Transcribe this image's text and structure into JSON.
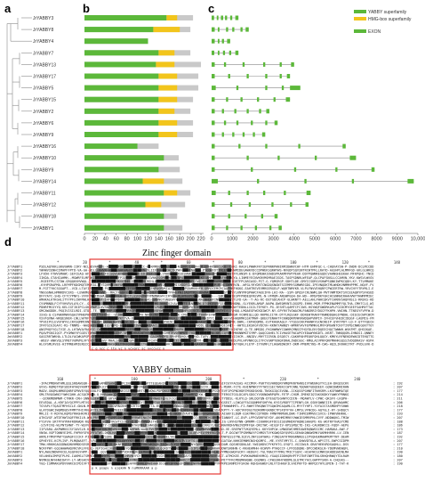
{
  "panels": {
    "a": "a",
    "b": "b",
    "c": "c",
    "d": "d"
  },
  "genes": [
    "JrYABBY3",
    "JrYABBY8",
    "JrYABBY4",
    "JrYABBY7",
    "JrYABBY13",
    "JrYABBY17",
    "JrYABBY5",
    "JrYABBY15",
    "JrYABBY2",
    "JrYABBY6",
    "JrYABBY9",
    "JrYABBY16",
    "JrYABBY10",
    "JrYABBY9",
    "JrYABBY14",
    "JrYABBY11",
    "JrYABBY12",
    "JrYABBY18",
    "JrYABBY1"
  ],
  "legend_b_c": {
    "yabby": "YABBY superfamily",
    "hmg": "HMG-box superfamily",
    "exon": "EXON"
  },
  "colors": {
    "yabby": "#5cb83a",
    "hmg": "#f2c51c",
    "protein_bg": "#c9c9c9",
    "exon": "#5cb83a",
    "intron": "#888888",
    "box": "#e53935"
  },
  "axis_b": {
    "ticks": [
      "0",
      "20",
      "40",
      "60",
      "80",
      "100",
      "120",
      "140",
      "160",
      "180",
      "200",
      "220"
    ],
    "max": 225
  },
  "axis_c": {
    "ticks": [
      "0",
      "1000",
      "2000",
      "3000",
      "4000",
      "5000",
      "6000",
      "7000",
      "8000",
      "9000",
      "10,000"
    ],
    "max": 10000
  },
  "proteins": [
    {
      "len": 205,
      "domains": [
        {
          "t": "yabby",
          "s": 0,
          "e": 155
        },
        {
          "t": "hmg",
          "s": 155,
          "e": 175
        }
      ]
    },
    {
      "len": 200,
      "domains": [
        {
          "t": "yabby",
          "s": 0,
          "e": 130
        },
        {
          "t": "hmg",
          "s": 130,
          "e": 180
        }
      ]
    },
    {
      "len": 120,
      "domains": [
        {
          "t": "yabby",
          "s": 0,
          "e": 120
        }
      ]
    },
    {
      "len": 200,
      "domains": [
        {
          "t": "yabby",
          "s": 0,
          "e": 140
        },
        {
          "t": "hmg",
          "s": 140,
          "e": 170
        }
      ]
    },
    {
      "len": 220,
      "domains": [
        {
          "t": "yabby",
          "s": 0,
          "e": 135
        },
        {
          "t": "hmg",
          "s": 135,
          "e": 170
        }
      ]
    },
    {
      "len": 215,
      "domains": [
        {
          "t": "yabby",
          "s": 0,
          "e": 140
        },
        {
          "t": "hmg",
          "s": 140,
          "e": 175
        }
      ]
    },
    {
      "len": 215,
      "domains": [
        {
          "t": "yabby",
          "s": 0,
          "e": 140
        },
        {
          "t": "hmg",
          "s": 140,
          "e": 175
        }
      ]
    },
    {
      "len": 205,
      "domains": [
        {
          "t": "yabby",
          "s": 0,
          "e": 140
        },
        {
          "t": "hmg",
          "s": 140,
          "e": 175
        }
      ]
    },
    {
      "len": 200,
      "domains": [
        {
          "t": "yabby",
          "s": 0,
          "e": 140
        },
        {
          "t": "hmg",
          "s": 140,
          "e": 170
        }
      ]
    },
    {
      "len": 205,
      "domains": [
        {
          "t": "yabby",
          "s": 0,
          "e": 140
        },
        {
          "t": "hmg",
          "s": 140,
          "e": 175
        }
      ]
    },
    {
      "len": 205,
      "domains": [
        {
          "t": "yabby",
          "s": 0,
          "e": 140
        },
        {
          "t": "hmg",
          "s": 140,
          "e": 175
        }
      ]
    },
    {
      "len": 140,
      "domains": [
        {
          "t": "yabby",
          "s": 0,
          "e": 100
        }
      ]
    },
    {
      "len": 178,
      "domains": [
        {
          "t": "yabby",
          "s": 0,
          "e": 150
        }
      ]
    },
    {
      "len": 180,
      "domains": [
        {
          "t": "yabby",
          "s": 0,
          "e": 140
        }
      ]
    },
    {
      "len": 185,
      "domains": [
        {
          "t": "yabby",
          "s": 0,
          "e": 110
        },
        {
          "t": "hmg",
          "s": 110,
          "e": 150
        }
      ]
    },
    {
      "len": 200,
      "domains": [
        {
          "t": "yabby",
          "s": 0,
          "e": 150
        },
        {
          "t": "hmg",
          "s": 150,
          "e": 175
        }
      ]
    },
    {
      "len": 190,
      "domains": [
        {
          "t": "yabby",
          "s": 0,
          "e": 115
        },
        {
          "t": "hmg",
          "s": 115,
          "e": 145
        }
      ]
    },
    {
      "len": 175,
      "domains": [
        {
          "t": "yabby",
          "s": 0,
          "e": 150
        }
      ]
    },
    {
      "len": 185,
      "domains": [
        {
          "t": "yabby",
          "s": 0,
          "e": 150
        }
      ]
    }
  ],
  "gene_structures": [
    {
      "len": 1300,
      "exons": [
        [
          0,
          120
        ],
        [
          250,
          330
        ],
        [
          450,
          560
        ],
        [
          650,
          750
        ],
        [
          900,
          1000
        ],
        [
          1150,
          1300
        ]
      ]
    },
    {
      "len": 1800,
      "exons": [
        [
          0,
          150
        ],
        [
          300,
          380
        ],
        [
          700,
          800
        ],
        [
          1000,
          1100
        ],
        [
          1400,
          1500
        ],
        [
          1650,
          1800
        ]
      ]
    },
    {
      "len": 900,
      "exons": [
        [
          0,
          150
        ],
        [
          300,
          380
        ],
        [
          500,
          600
        ],
        [
          750,
          900
        ]
      ]
    },
    {
      "len": 1300,
      "exons": [
        [
          0,
          130
        ],
        [
          300,
          380
        ],
        [
          550,
          650
        ],
        [
          850,
          950
        ],
        [
          1150,
          1300
        ]
      ]
    },
    {
      "len": 4000,
      "exons": [
        [
          0,
          150
        ],
        [
          600,
          700
        ],
        [
          1500,
          1600
        ],
        [
          2500,
          2600
        ],
        [
          3300,
          3400
        ],
        [
          3850,
          4000
        ]
      ]
    },
    {
      "len": 3800,
      "exons": [
        [
          0,
          150
        ],
        [
          800,
          900
        ],
        [
          1700,
          1800
        ],
        [
          2600,
          2700
        ],
        [
          3300,
          3400
        ],
        [
          3650,
          3800
        ]
      ]
    },
    {
      "len": 4300,
      "exons": [
        [
          0,
          200
        ],
        [
          1200,
          1300
        ],
        [
          2600,
          2700
        ],
        [
          3400,
          3500
        ],
        [
          3800,
          4300
        ]
      ]
    },
    {
      "len": 3800,
      "exons": [
        [
          0,
          150
        ],
        [
          700,
          800
        ],
        [
          1400,
          1500
        ],
        [
          2200,
          2300
        ],
        [
          3000,
          3100
        ],
        [
          3600,
          3800
        ]
      ]
    },
    {
      "len": 2800,
      "exons": [
        [
          0,
          150
        ],
        [
          500,
          600
        ],
        [
          1100,
          1200
        ],
        [
          1700,
          1800
        ],
        [
          2300,
          2400
        ],
        [
          2650,
          2800
        ]
      ]
    },
    {
      "len": 3200,
      "exons": [
        [
          0,
          150
        ],
        [
          600,
          700
        ],
        [
          1200,
          1300
        ],
        [
          1900,
          2000
        ],
        [
          2600,
          2700
        ],
        [
          3050,
          3200
        ]
      ]
    },
    {
      "len": 2600,
      "exons": [
        [
          0,
          150
        ],
        [
          500,
          600
        ],
        [
          1000,
          1100
        ],
        [
          1500,
          1600
        ],
        [
          2000,
          2100
        ],
        [
          2450,
          2600
        ]
      ]
    },
    {
      "len": 6500,
      "exons": [
        [
          0,
          150
        ],
        [
          1300,
          1400
        ],
        [
          2600,
          2700
        ],
        [
          4200,
          4300
        ],
        [
          6350,
          6500
        ]
      ]
    },
    {
      "len": 7000,
      "exons": [
        [
          0,
          150
        ],
        [
          1700,
          1800
        ],
        [
          3200,
          3300
        ],
        [
          5000,
          5100
        ],
        [
          6700,
          7000
        ]
      ]
    },
    {
      "len": 7900,
      "exons": [
        [
          0,
          150
        ],
        [
          1900,
          2000
        ],
        [
          4000,
          4100
        ],
        [
          6000,
          6100
        ],
        [
          7750,
          7900
        ]
      ]
    },
    {
      "len": 9800,
      "exons": [
        [
          0,
          300
        ],
        [
          2200,
          2300
        ],
        [
          4500,
          4600
        ],
        [
          6800,
          6900
        ],
        [
          9500,
          9800
        ]
      ]
    },
    {
      "len": 4800,
      "exons": [
        [
          0,
          200
        ],
        [
          800,
          900
        ],
        [
          1700,
          1800
        ],
        [
          2500,
          2600
        ],
        [
          3500,
          3600
        ],
        [
          4600,
          4800
        ]
      ]
    },
    {
      "len": 4700,
      "exons": [
        [
          0,
          150
        ],
        [
          900,
          1000
        ],
        [
          1800,
          1900
        ],
        [
          2900,
          3000
        ],
        [
          3800,
          3900
        ],
        [
          4550,
          4700
        ]
      ]
    },
    {
      "len": 3200,
      "exons": [
        [
          0,
          150
        ],
        [
          800,
          900
        ],
        [
          1600,
          1700
        ],
        [
          2400,
          2500
        ],
        [
          3050,
          3200
        ]
      ]
    },
    {
      "len": 3400,
      "exons": [
        [
          0,
          150
        ],
        [
          700,
          800
        ],
        [
          1400,
          1500
        ],
        [
          2100,
          2200
        ],
        [
          2800,
          2900
        ],
        [
          3250,
          3400
        ]
      ]
    }
  ],
  "alignment": {
    "zinc_title": "Zinc finger domain",
    "yabby_title": "YABBY domain",
    "block1_names": [
      "JrYABBY1",
      "JrYABBY2",
      "JrYABBY3",
      "JrYABBY4",
      "JrYABBY5",
      "JrYABBY6",
      "JrYABBY7",
      "JrYABBY8",
      "JrYABBY9",
      "JrYABBY10",
      "JrYABBY11",
      "JrYABBY12",
      "JrYABBY13",
      "JrYABBY14",
      "JrYABBY15",
      "JrYABBY16",
      "JrYABBY17",
      "JrYABBY18",
      "JmYABBY1",
      "JmYABBY2",
      "JmYABBY3",
      "JmYABBY4"
    ],
    "block1_positions": [
      "*",
      "20",
      "*",
      "40",
      "*",
      "60",
      "*",
      "80",
      "*",
      "100",
      "*",
      "120",
      "*",
      "140"
    ],
    "block1_consensus": "c      g       ncc  c  ltv vc  n    vcygrc  sc   nyccvcc  n",
    "block2_names": [
      "JrYABBY1",
      "JrYABBY2",
      "JrYABBY3",
      "JrYABBY4",
      "JrYABBY5",
      "JrYABBY6",
      "JrYABBY7",
      "JrYABBY8",
      "JrYABBY9",
      "JrYABBY10",
      "JrYABBY11",
      "JrYABBY12",
      "JrYABBY13",
      "JrYABBY14",
      "JrYABBY15",
      "JrYABBY16",
      "JrYABBY17",
      "JrYABBY18",
      "JmYABBY1",
      "JmYABBY2",
      "JmYABBY3",
      "JmYABBY4"
    ],
    "block2_positions": [
      "160",
      "*",
      "180",
      "*",
      "200",
      "*",
      "220",
      "*",
      "240"
    ],
    "block2_ends": [
      192,
      207,
      177,
      214,
      211,
      206,
      218,
      177,
      193,
      207,
      188,
      186,
      173,
      187,
      192,
      207,
      177,
      210,
      190,
      180,
      207,
      190
    ],
    "block2_consensus": "p  k  psapv  n  eiqkHA  N  nuMKRRAAR a  p"
  }
}
